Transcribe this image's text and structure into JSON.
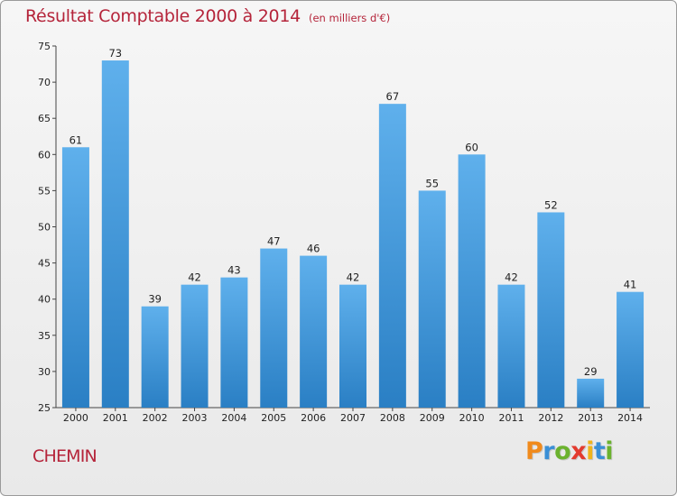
{
  "title": "Résultat Comptable 2000 à 2014",
  "unit": "(en milliers d'€)",
  "commune": "CHEMIN",
  "brand": {
    "letters": [
      "P",
      "r",
      "o",
      "x",
      "i",
      "t",
      "i"
    ],
    "colors": [
      "#f08a1c",
      "#3a8fd6",
      "#6bb22e",
      "#e33b2f",
      "#f0b41c",
      "#3a8fd6",
      "#6bb22e"
    ]
  },
  "colors": {
    "title": "#b5243a",
    "bar_top": "#5fb0ec",
    "bar_bottom": "#2a7fc4"
  },
  "chart_data": {
    "type": "bar",
    "categories": [
      "2000",
      "2001",
      "2002",
      "2003",
      "2004",
      "2005",
      "2006",
      "2007",
      "2008",
      "2009",
      "2010",
      "2011",
      "2012",
      "2013",
      "2014"
    ],
    "values": [
      61,
      73,
      39,
      42,
      43,
      47,
      46,
      42,
      67,
      55,
      60,
      42,
      52,
      29,
      41
    ],
    "ylim": [
      25,
      75
    ],
    "yticks": [
      25,
      30,
      35,
      40,
      45,
      50,
      55,
      60,
      65,
      70,
      75
    ],
    "grid": false
  }
}
